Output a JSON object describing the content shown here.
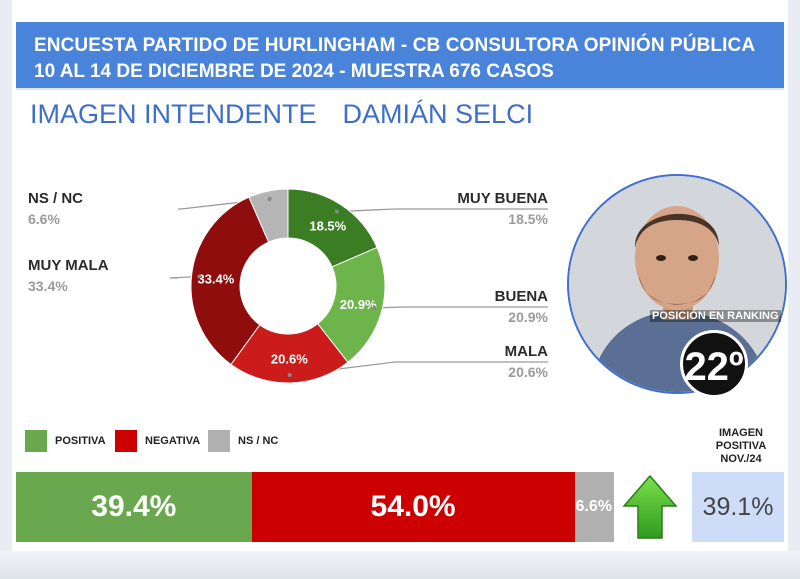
{
  "header": {
    "line1": "ENCUESTA PARTIDO DE HURLINGHAM - CB CONSULTORA OPINIÓN PÚBLICA",
    "line2": "10 AL 14 DE DICIEMBRE DE 2024 - MUESTRA 676 CASOS"
  },
  "subtitle": {
    "part1": "IMAGEN INTENDENTE",
    "part2": "DAMIÁN SELCI"
  },
  "chart_data": {
    "type": "donut",
    "slices": [
      {
        "label": "MUY BUENA",
        "value": 18.5,
        "display": "18.5%",
        "color": "#3b7d23"
      },
      {
        "label": "BUENA",
        "value": 20.9,
        "display": "20.9%",
        "color": "#6db44a"
      },
      {
        "label": "MALA",
        "value": 20.6,
        "display": "20.6%",
        "color": "#cc1b1b"
      },
      {
        "label": "MUY MALA",
        "value": 33.4,
        "display": "33.4%",
        "color": "#8f0d0d"
      },
      {
        "label": "NS / NC",
        "value": 6.6,
        "display": "6.6%",
        "color": "#b5b5b5"
      }
    ],
    "summary_bar": {
      "legend": [
        {
          "label": "POSITIVA",
          "color": "#6aa84f"
        },
        {
          "label": "NEGATIVA",
          "color": "#cc0000"
        },
        {
          "label": "NS / NC",
          "color": "#b0b0b0"
        }
      ],
      "segments": [
        {
          "label": "POSITIVA",
          "value": 39.4,
          "display": "39.4%",
          "color": "#6aa84f"
        },
        {
          "label": "NEGATIVA",
          "value": 54.0,
          "display": "54.0%",
          "color": "#cc0000"
        },
        {
          "label": "NS / NC",
          "value": 6.6,
          "display": "6.6%",
          "color": "#b0b0b0"
        }
      ]
    },
    "previous": {
      "label": "IMAGEN POSITIVA NOV./24",
      "value": 39.1,
      "display": "39.1%",
      "trend": "up"
    }
  },
  "ranking": {
    "label": "POSICIÓN EN RANKING",
    "value": "22º"
  }
}
